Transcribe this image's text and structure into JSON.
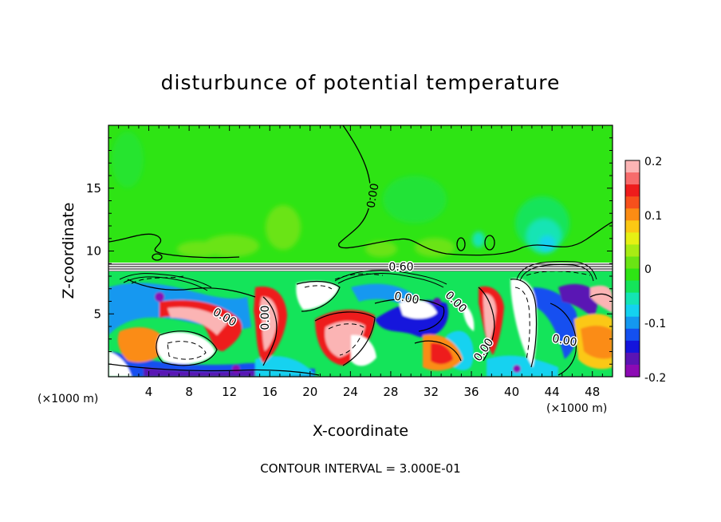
{
  "chart_data": {
    "type": "heatmap",
    "title": "disturbunce of potential temperature",
    "xlabel": "X-coordinate",
    "ylabel": "Z-coordinate",
    "x_unit_left": "(×1000 m)",
    "x_unit_right": "(×1000 m)",
    "footer": "CONTOUR INTERVAL = 3.000E-01",
    "xlim": [
      0,
      50
    ],
    "ylim": [
      0,
      20
    ],
    "x_ticks": [
      4,
      8,
      12,
      16,
      20,
      24,
      28,
      32,
      36,
      40,
      44,
      48
    ],
    "x_tick_labels": [
      "4",
      "8",
      "12",
      "16",
      "20",
      "24",
      "28",
      "32",
      "36",
      "40",
      "44",
      "48"
    ],
    "y_ticks": [
      5,
      10,
      15
    ],
    "y_tick_labels": [
      "5",
      "10",
      "15"
    ],
    "colorbar": {
      "range": [
        -0.2,
        0.2
      ],
      "ticks": [
        0.2,
        0.1,
        0,
        -0.1,
        -0.2
      ],
      "tick_labels": [
        "0.2",
        "0.1",
        "0",
        "-0.1",
        "-0.2"
      ],
      "colors": [
        "#fbb4b4",
        "#f76c6c",
        "#ee1c1c",
        "#f7501c",
        "#fb8c14",
        "#fbc814",
        "#e6f014",
        "#a8ec14",
        "#6ae414",
        "#2ee414",
        "#14e45a",
        "#14e4b4",
        "#14d2f0",
        "#1498f0",
        "#1450f0",
        "#1414dc",
        "#5a14b4",
        "#8c0ab4"
      ]
    },
    "contour_labels": [
      {
        "text": "0.00",
        "x": 21.5,
        "z": 14.5,
        "angle": -80
      },
      {
        "text": "0.60",
        "x": 29.5,
        "z": 8.7,
        "angle": 0
      },
      {
        "text": "0.00",
        "x": 10.5,
        "z": 5.3,
        "angle": 30
      },
      {
        "text": "0.00",
        "x": 15.3,
        "z": 4.8,
        "angle": -90
      },
      {
        "text": "0.00",
        "x": 28.5,
        "z": 6.2,
        "angle": 10
      },
      {
        "text": "0.00",
        "x": 34.0,
        "z": 6.0,
        "angle": 45
      },
      {
        "text": "0.00",
        "x": 36.5,
        "z": 2.2,
        "angle": -55
      },
      {
        "text": "0.00",
        "x": 45.5,
        "z": 3.0,
        "angle": 10
      }
    ]
  }
}
